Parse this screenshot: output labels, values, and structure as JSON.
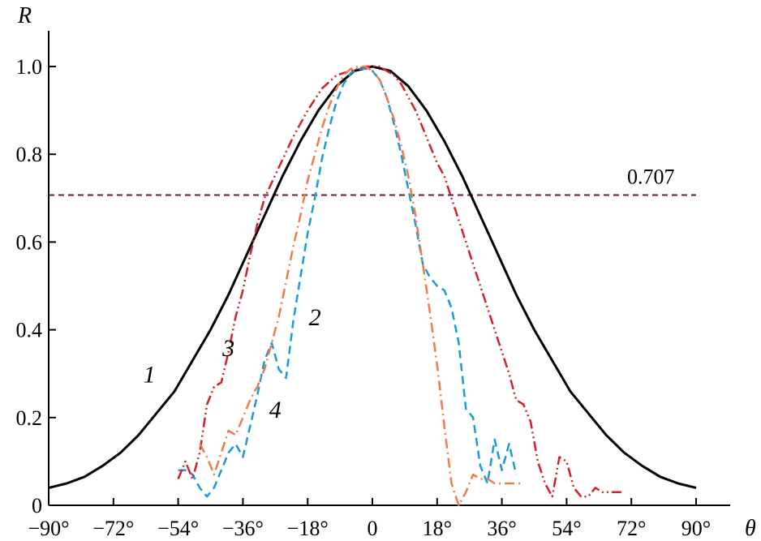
{
  "chart_data": {
    "type": "line",
    "title": "",
    "xlabel": "θ",
    "ylabel": "R",
    "xlim": [
      -90,
      90
    ],
    "ylim": [
      0,
      1.0
    ],
    "grid": false,
    "x_tick_values": [
      -90,
      -72,
      -54,
      -36,
      -18,
      0,
      18,
      36,
      54,
      72,
      90
    ],
    "x_tick_labels": [
      "−90°",
      "−72°",
      "−54°",
      "−36°",
      "−18°",
      "0",
      "18°",
      "36°",
      "54°",
      "72°",
      "90°"
    ],
    "y_tick_values": [
      0,
      0.2,
      0.4,
      0.6,
      0.8,
      1.0
    ],
    "y_tick_labels": [
      "0",
      "0.2",
      "0.4",
      "0.6",
      "0.8",
      "1.0"
    ],
    "reference_line": {
      "y": 0.707,
      "label": "0.707",
      "color": "#6b1a3a"
    },
    "series": [
      {
        "label": "1",
        "color": "#000000",
        "dash": "solid",
        "x": [
          -90,
          -85,
          -80,
          -75,
          -70,
          -65,
          -60,
          -55,
          -50,
          -45,
          -40,
          -35,
          -30,
          -25,
          -20,
          -15,
          -10,
          -5,
          0,
          5,
          10,
          15,
          20,
          25,
          30,
          35,
          40,
          45,
          50,
          55,
          60,
          65,
          70,
          75,
          80,
          85,
          90
        ],
        "y": [
          0.04,
          0.05,
          0.065,
          0.09,
          0.12,
          0.16,
          0.21,
          0.26,
          0.33,
          0.4,
          0.48,
          0.57,
          0.66,
          0.75,
          0.83,
          0.9,
          0.955,
          0.99,
          1.0,
          0.99,
          0.955,
          0.9,
          0.83,
          0.75,
          0.66,
          0.57,
          0.48,
          0.4,
          0.33,
          0.26,
          0.21,
          0.16,
          0.12,
          0.09,
          0.065,
          0.05,
          0.04
        ]
      },
      {
        "label": "2",
        "color": "#1a9ad6",
        "dash": "dashed",
        "x": [
          -54,
          -52,
          -50,
          -48,
          -46,
          -44,
          -42,
          -40,
          -38,
          -36,
          -34,
          -32,
          -30,
          -28,
          -26,
          -24,
          -22,
          -20,
          -18,
          -16,
          -14,
          -12,
          -10,
          -8,
          -6,
          -4,
          -2,
          0,
          2,
          4,
          6,
          8,
          10,
          12,
          14,
          16,
          18,
          20,
          22,
          24,
          26,
          28,
          30,
          32,
          34,
          36,
          38,
          40
        ],
        "y": [
          0.08,
          0.08,
          0.07,
          0.04,
          0.02,
          0.04,
          0.08,
          0.12,
          0.14,
          0.11,
          0.18,
          0.25,
          0.33,
          0.37,
          0.31,
          0.29,
          0.42,
          0.52,
          0.62,
          0.7,
          0.79,
          0.86,
          0.92,
          0.96,
          0.985,
          0.995,
          0.995,
          0.99,
          0.97,
          0.93,
          0.87,
          0.8,
          0.72,
          0.64,
          0.55,
          0.52,
          0.5,
          0.49,
          0.45,
          0.37,
          0.22,
          0.2,
          0.09,
          0.05,
          0.15,
          0.08,
          0.14,
          0.07
        ]
      },
      {
        "label": "3",
        "color": "#d42029",
        "dash": "dash-dot-dot",
        "x": [
          -54,
          -52,
          -50,
          -48,
          -46,
          -44,
          -42,
          -40,
          -38,
          -36,
          -34,
          -32,
          -30,
          -26,
          -22,
          -18,
          -14,
          -10,
          -6,
          -2,
          0,
          2,
          4,
          6,
          8,
          10,
          12,
          14,
          16,
          18,
          20,
          22,
          24,
          26,
          28,
          30,
          32,
          34,
          36,
          38,
          40,
          42,
          44,
          46,
          48,
          50,
          52,
          54,
          56,
          58,
          60,
          62,
          64,
          66,
          68,
          70
        ],
        "y": [
          0.06,
          0.1,
          0.06,
          0.12,
          0.23,
          0.27,
          0.28,
          0.35,
          0.43,
          0.49,
          0.57,
          0.64,
          0.7,
          0.77,
          0.84,
          0.9,
          0.95,
          0.98,
          0.99,
          1.0,
          1.0,
          1.0,
          0.99,
          0.98,
          0.96,
          0.93,
          0.9,
          0.86,
          0.82,
          0.78,
          0.75,
          0.7,
          0.65,
          0.6,
          0.55,
          0.5,
          0.45,
          0.4,
          0.35,
          0.3,
          0.24,
          0.23,
          0.19,
          0.1,
          0.05,
          0.02,
          0.11,
          0.1,
          0.04,
          0.02,
          0.02,
          0.04,
          0.03,
          0.03,
          0.03,
          0.03
        ]
      },
      {
        "label": "4",
        "color": "#f07a4a",
        "dash": "dash-dot",
        "x": [
          -48,
          -46,
          -44,
          -42,
          -40,
          -38,
          -36,
          -34,
          -32,
          -30,
          -28,
          -26,
          -24,
          -22,
          -20,
          -18,
          -16,
          -14,
          -12,
          -10,
          -8,
          -6,
          -4,
          -2,
          0,
          2,
          4,
          6,
          8,
          10,
          12,
          14,
          16,
          18,
          20,
          22,
          24,
          26,
          28,
          30,
          32,
          34,
          36,
          38,
          40,
          42
        ],
        "y": [
          0.14,
          0.11,
          0.07,
          0.12,
          0.17,
          0.16,
          0.2,
          0.24,
          0.27,
          0.31,
          0.37,
          0.43,
          0.51,
          0.59,
          0.66,
          0.74,
          0.8,
          0.86,
          0.91,
          0.95,
          0.98,
          0.995,
          1.0,
          1.0,
          0.99,
          0.97,
          0.93,
          0.88,
          0.82,
          0.75,
          0.66,
          0.55,
          0.44,
          0.32,
          0.18,
          0.05,
          0.0,
          0.03,
          0.07,
          0.06,
          0.06,
          0.05,
          0.05,
          0.05,
          0.05,
          0.05
        ]
      }
    ],
    "curve_labels": [
      {
        "text": "1",
        "x": -62,
        "y": 0.28
      },
      {
        "text": "2",
        "x": -16,
        "y": 0.41
      },
      {
        "text": "3",
        "x": -40,
        "y": 0.34
      },
      {
        "text": "4",
        "x": -27,
        "y": 0.2
      }
    ]
  }
}
